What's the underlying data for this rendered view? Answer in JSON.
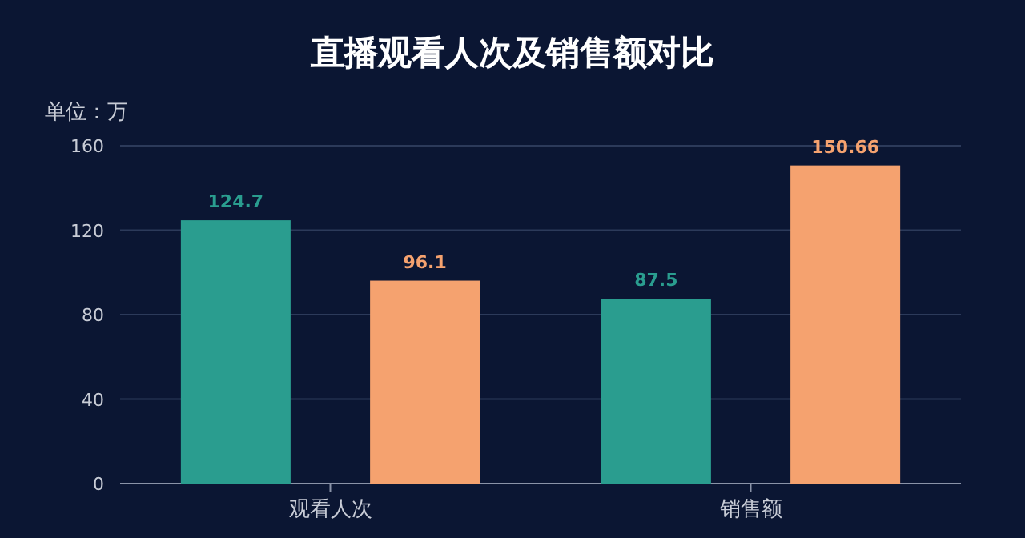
{
  "chart_data": {
    "type": "bar",
    "title": "直播观看人次及销售额对比",
    "ylabel": "单位：万",
    "categories": [
      "观看人次",
      "销售额"
    ],
    "series": [
      {
        "color": "#2a9d8f",
        "values": [
          124.7,
          87.5
        ]
      },
      {
        "color": "#f5a26f",
        "values": [
          96.1,
          150.66
        ]
      }
    ],
    "ylim": [
      0,
      160
    ],
    "yticks": [
      0,
      40,
      80,
      120,
      160
    ],
    "grid": "y",
    "data_labels": true
  }
}
